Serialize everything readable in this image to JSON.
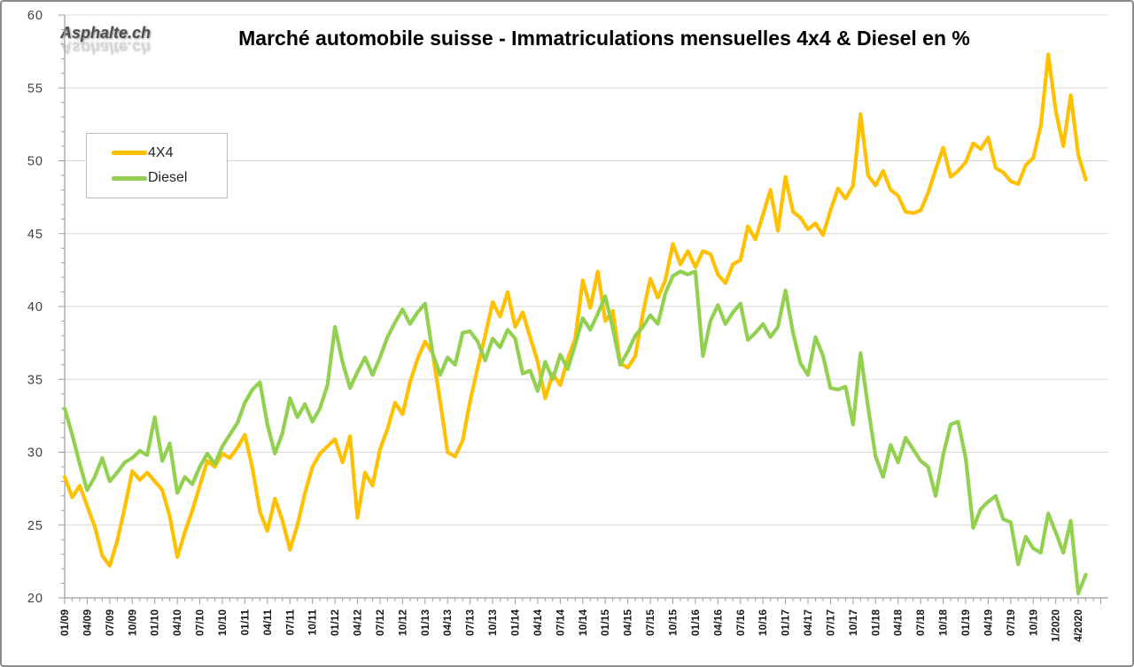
{
  "logo": {
    "text": "Asphalte.ch"
  },
  "title": "Marché automobile suisse - Immatriculations mensuelles 4x4 & Diesel en %",
  "colors": {
    "series_4x4": "#FFC000",
    "series_diesel": "#92D050",
    "gridline": "#d9d9d9",
    "axis": "#9d9d9d",
    "tick_label": "#1a1a1a",
    "y_label": "#404040"
  },
  "chart_data": {
    "type": "line",
    "title": "Marché automobile suisse - Immatriculations mensuelles 4x4 & Diesel en %",
    "x_start": "01/2009",
    "x_end": "05/2020",
    "x_frequency": "monthly",
    "xlabel": "",
    "ylabel": "",
    "ylim": [
      20,
      60
    ],
    "y_ticks": [
      20,
      25,
      30,
      35,
      40,
      45,
      50,
      55,
      60
    ],
    "grid": "horizontal",
    "x_tick_labels": [
      "01/09",
      "04/09",
      "07/09",
      "10/09",
      "01/10",
      "04/10",
      "07/10",
      "10/10",
      "01/11",
      "04/11",
      "07/11",
      "10/11",
      "01/12",
      "04/12",
      "07/12",
      "10/12",
      "01/13",
      "04/13",
      "07/13",
      "10/13",
      "01/14",
      "04/14",
      "07/14",
      "10/14",
      "01/15",
      "04/15",
      "07/15",
      "10/15",
      "01/16",
      "04/16",
      "07/16",
      "10/16",
      "01/17",
      "04/17",
      "07/17",
      "10/17",
      "01/18",
      "04/18",
      "07/18",
      "10/18",
      "01/19",
      "04/19",
      "07/19",
      "10/19",
      "1/2020",
      "4/2020"
    ],
    "legend": {
      "position": "upper-left",
      "entries": [
        {
          "label": "4X4",
          "color": "#FFC000"
        },
        {
          "label": "Diesel",
          "color": "#92D050"
        }
      ]
    },
    "series": [
      {
        "name": "4X4",
        "color": "#FFC000",
        "trendline": "poly3",
        "values": [
          28.3,
          26.9,
          27.7,
          26.3,
          24.9,
          22.9,
          22.2,
          23.9,
          26.2,
          28.7,
          28.1,
          28.6,
          28.0,
          27.4,
          25.6,
          22.8,
          24.5,
          26.0,
          27.7,
          29.4,
          29.0,
          29.9,
          29.6,
          30.3,
          31.2,
          28.9,
          25.9,
          24.6,
          26.8,
          25.3,
          23.3,
          25.0,
          27.2,
          29.0,
          29.9,
          30.4,
          30.9,
          29.3,
          31.1,
          25.5,
          28.6,
          27.7,
          30.2,
          31.6,
          33.4,
          32.6,
          34.8,
          36.4,
          37.6,
          36.8,
          33.5,
          30.0,
          29.7,
          30.8,
          33.5,
          35.8,
          38.0,
          40.3,
          39.3,
          41.0,
          38.6,
          39.6,
          37.9,
          36.2,
          33.7,
          35.4,
          34.6,
          36.4,
          37.8,
          41.8,
          39.9,
          42.4,
          39.0,
          39.7,
          36.1,
          35.8,
          36.6,
          39.5,
          41.9,
          40.6,
          41.8,
          44.3,
          42.9,
          43.8,
          42.7,
          43.8,
          43.6,
          42.2,
          41.6,
          42.9,
          43.2,
          45.5,
          44.6,
          46.3,
          48.0,
          45.2,
          48.9,
          46.5,
          46.1,
          45.3,
          45.7,
          44.9,
          46.6,
          48.1,
          47.4,
          48.3,
          53.2,
          49.0,
          48.3,
          49.3,
          48.0,
          47.6,
          46.5,
          46.4,
          46.6,
          47.8,
          49.4,
          50.9,
          48.9,
          49.3,
          49.9,
          51.2,
          50.8,
          51.6,
          49.5,
          49.2,
          48.6,
          48.4,
          49.7,
          50.2,
          52.4,
          57.3,
          53.4,
          51.0,
          54.5,
          50.4,
          48.7
        ]
      },
      {
        "name": "Diesel",
        "color": "#92D050",
        "trendline": "poly3",
        "values": [
          33.0,
          31.2,
          29.2,
          27.4,
          28.3,
          29.6,
          28.0,
          28.6,
          29.3,
          29.6,
          30.1,
          29.8,
          32.4,
          29.4,
          30.6,
          27.2,
          28.3,
          27.8,
          29.0,
          29.9,
          29.2,
          30.4,
          31.2,
          32.0,
          33.4,
          34.3,
          34.8,
          31.9,
          29.9,
          31.3,
          33.7,
          32.4,
          33.3,
          32.1,
          33.0,
          34.6,
          38.6,
          36.2,
          34.4,
          35.5,
          36.5,
          35.3,
          36.5,
          37.9,
          38.9,
          39.8,
          38.8,
          39.6,
          40.2,
          36.8,
          35.3,
          36.5,
          36.0,
          38.2,
          38.3,
          37.6,
          36.3,
          37.8,
          37.2,
          38.4,
          37.8,
          35.4,
          35.6,
          34.2,
          36.2,
          35.0,
          36.7,
          35.7,
          37.4,
          39.2,
          38.4,
          39.5,
          40.7,
          38.5,
          36.0,
          36.9,
          38.0,
          38.6,
          39.4,
          38.8,
          40.9,
          42.1,
          42.4,
          42.2,
          42.4,
          36.6,
          39.0,
          40.1,
          38.8,
          39.6,
          40.2,
          37.7,
          38.2,
          38.8,
          37.9,
          38.6,
          41.1,
          38.2,
          36.1,
          35.3,
          37.9,
          36.6,
          34.4,
          34.3,
          34.5,
          31.9,
          36.8,
          33.1,
          29.7,
          28.3,
          30.5,
          29.3,
          31.0,
          30.2,
          29.4,
          29.0,
          27.0,
          29.8,
          31.9,
          32.1,
          29.6,
          24.8,
          26.1,
          26.6,
          27.0,
          25.4,
          25.2,
          22.3,
          24.2,
          23.4,
          23.1,
          25.8,
          24.5,
          23.1,
          25.3,
          20.3,
          21.6
        ]
      }
    ]
  }
}
